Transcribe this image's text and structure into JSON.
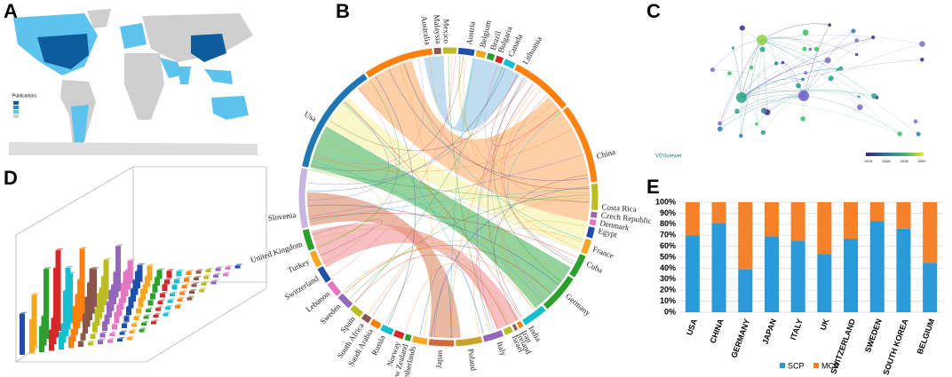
{
  "panels": [
    "A",
    "B",
    "C",
    "D",
    "E"
  ],
  "map": {
    "legend_title": "Publications"
  },
  "chord": {
    "labels": [
      "Austria",
      "Belgium",
      "Brazil",
      "Bulgaria",
      "Canada",
      "Lithuania",
      "China",
      "Costa Rica",
      "Czech Republic",
      "Denmark",
      "Egypt",
      "France",
      "Cuba",
      "Germany",
      "India",
      "Iran",
      "Ireland",
      "Israel",
      "Italy",
      "Poland",
      "Japan",
      "Netherlands",
      "New Zealand",
      "Norway",
      "Russia",
      "Saudi Arabia",
      "South Africa",
      "Spain",
      "Sweden",
      "Lebanon",
      "Switzerland",
      "Turkey",
      "United Kingdom",
      "Slovenia",
      "Usa",
      "Australia",
      "Malaysia",
      "Mexico"
    ]
  },
  "network": {
    "brand": "VOSviewer",
    "colorbar_ticks": [
      "2014",
      "2016",
      "2018",
      "2020"
    ]
  },
  "chart_data": {
    "type": "stacked_bar",
    "categories": [
      "USA",
      "CHINA",
      "GERMANY",
      "JAPAN",
      "ITALY",
      "UK",
      "SWITZERLAND",
      "SWEDEN",
      "SOUTH KOREA",
      "BELGIUM"
    ],
    "series": [
      {
        "name": "SCP",
        "color": "#2a9bd8",
        "values": [
          70,
          81,
          39,
          69,
          65,
          53,
          67,
          83,
          76,
          45
        ]
      },
      {
        "name": "MCP",
        "color": "#f5822a",
        "values": [
          30,
          19,
          61,
          31,
          35,
          47,
          33,
          17,
          24,
          55
        ]
      }
    ],
    "ylim": [
      0,
      100
    ],
    "yticks": [
      {
        "value": 0,
        "label": "0%"
      },
      {
        "value": 10,
        "label": "10%"
      },
      {
        "value": 20,
        "label": "20%"
      },
      {
        "value": 30,
        "label": "30%"
      },
      {
        "value": 40,
        "label": "40%"
      },
      {
        "value": 50,
        "label": "50%"
      },
      {
        "value": 60,
        "label": "60%"
      },
      {
        "value": 70,
        "label": "70%"
      },
      {
        "value": 80,
        "label": "80%"
      },
      {
        "value": 90,
        "label": "90%"
      },
      {
        "value": 100,
        "label": "100%"
      }
    ],
    "grid": true,
    "legend": "bottom"
  }
}
